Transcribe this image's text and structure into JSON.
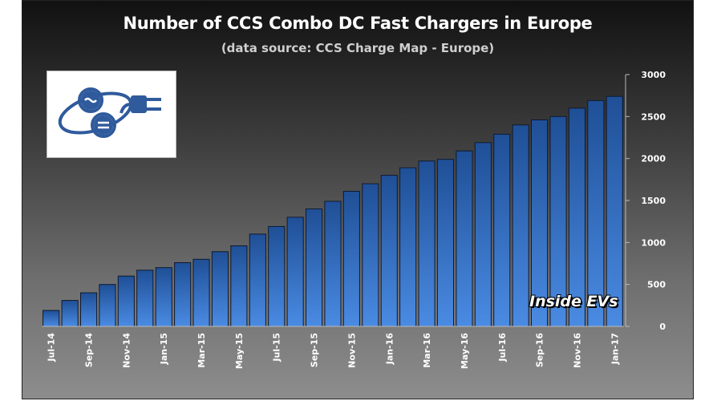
{
  "chart_data": {
    "type": "bar",
    "title": "Number of CCS Combo DC Fast Chargers in Europe",
    "subtitle": "(data source: CCS Charge Map - Europe)",
    "xlabel": "",
    "ylabel": "",
    "categories": [
      "Jul-14",
      "Aug-14",
      "Sep-14",
      "Oct-14",
      "Nov-14",
      "Dec-14",
      "Jan-15",
      "Feb-15",
      "Mar-15",
      "Apr-15",
      "May-15",
      "Jun-15",
      "Jul-15",
      "Aug-15",
      "Sep-15",
      "Oct-15",
      "Nov-15",
      "Dec-15",
      "Jan-16",
      "Feb-16",
      "Mar-16",
      "Apr-16",
      "May-16",
      "Jun-16",
      "Jul-16",
      "Aug-16",
      "Sep-16",
      "Oct-16",
      "Nov-16",
      "Dec-16",
      "Jan-17"
    ],
    "x_tick_labels": [
      "Jul-14",
      "Sep-14",
      "Nov-14",
      "Jan-15",
      "Mar-15",
      "May-15",
      "Jul-15",
      "Sep-15",
      "Nov-15",
      "Jan-16",
      "Mar-16",
      "May-16",
      "Jul-16",
      "Sep-16",
      "Nov-16",
      "Jan-17"
    ],
    "values": [
      190,
      310,
      400,
      500,
      600,
      670,
      700,
      760,
      800,
      890,
      960,
      1100,
      1190,
      1300,
      1400,
      1490,
      1610,
      1700,
      1800,
      1890,
      1970,
      1990,
      2090,
      2190,
      2290,
      2400,
      2460,
      2500,
      2600,
      2690,
      2740
    ],
    "ylim": [
      0,
      3000
    ],
    "y_ticks": [
      0,
      500,
      1000,
      1500,
      2000,
      2500,
      3000
    ],
    "y_axis_position": "right",
    "grid": false,
    "colors": {
      "bar_top": "#1f4f96",
      "bar_bottom": "#4a8be3",
      "bar_edge": "#0e1a30"
    }
  },
  "watermark": "Inside EVs",
  "logo": {
    "icon": "ccs-plug-logo-icon",
    "color": "#2f5a9c"
  }
}
